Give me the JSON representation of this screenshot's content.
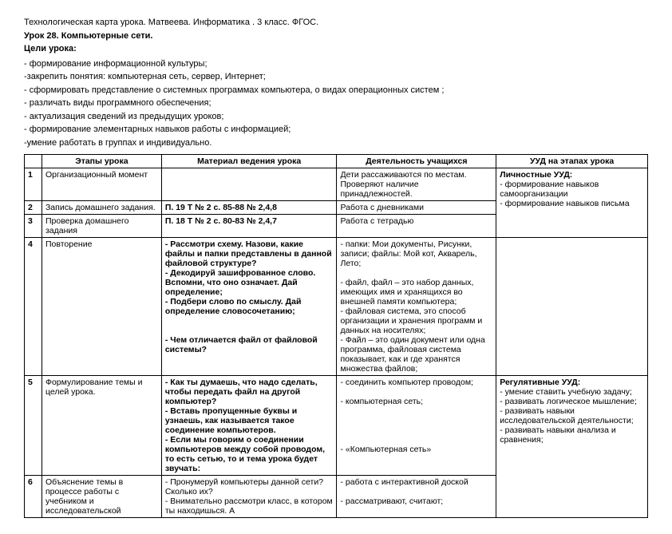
{
  "header": {
    "line1": "Технологическая карта урока. Матвеева. Информатика . 3 класс. ФГОС.",
    "line2": "Урок 28. Компьютерные сети.",
    "goals_title": "Цели урока:",
    "goals": [
      "- формирование информационной культуры;",
      "-закрепить  понятия: компьютерная сеть, сервер, Интернет;",
      "- сформировать представление о системных программах компьютера, о видах операционных систем ;",
      "- различать виды программного обеспечения;",
      "- актуализация сведений из предыдущих уроков;",
      "- формирование элементарных навыков работы с информацией;",
      "-умение работать в группах и индивидуально."
    ]
  },
  "table": {
    "headers": [
      "",
      "Этапы урока",
      "Материал ведения урока",
      "Деятельность учащихся",
      "УУД на этапах урока"
    ],
    "rows": [
      {
        "n": "1",
        "c1": "Организационный момент",
        "c2": "",
        "c3": "Дети рассаживаются по местам. Проверяют наличие принадлежностей.",
        "c4_title": "Личностные УУД:",
        "c4_body": "-  формирование навыков самоорганизации\n- формирование навыков письма",
        "c4_rowspan": 3
      },
      {
        "n": "2",
        "c1": "Запись домашнего задания.",
        "c2": "П.  19   Т № 2 с.  85-88 № 2,4,8",
        "c3": "Работа с дневниками"
      },
      {
        "n": "3",
        "c1": "Проверка домашнего задания",
        "c2": "П.  18 Т № 2 с.  80-83  № 2,4,7",
        "c3": "Работа с тетрадью"
      },
      {
        "n": "4",
        "c1": "Повторение",
        "c2": "-    Рассмотри схему. Назови, какие файлы и папки представлены в данной файловой структуре?\n-    Декодируй зашифрованное слово. Вспомни, что оно означает. Дай определение;\n- Подбери слово по смыслу. Дай определение словосочетанию;\n\n\n-    Чем отличается файл от файловой системы?",
        "c3": "- папки: Мои документы, Рисунки, записи; файлы:  Мой кот, Акварель, Лето;\n\n- файл, файл – это набор данных, имеющих имя и хранящихся во внешней памяти компьютера;\n- файловая система, это способ организации и хранения программ и данных на носителях;\n- Файл – это один документ или одна программа, файловая система показывает, как и где хранятся множества файлов;",
        "c4": ""
      },
      {
        "n": "5",
        "c1": "Формулирование  темы и целей   урока.",
        "c2": "- Как ты думаешь, что надо сделать, чтобы передать файл на другой компьютер?\n-   Вставь пропущенные буквы и узнаешь, как называется  такое соединение компьютеров.\n- Если мы говорим о соединении  компьютеров между собой  проводом, то есть сетью, то и тема урока будет звучать:",
        "c3": "- соединить компьютер проводом;\n\n- компьютерная сеть;\n\n\n\n\n- «Компьютерная сеть»",
        "c4_title": "Регулятивные УУД:",
        "c4_body": "- умение ставить  учебную задачу;\n- развивать логическое мышление;\n- развивать навыки исследовательской деятельности;\n- развивать навыки анализа и сравнения;",
        "c4_rowspan": 2
      },
      {
        "n": "6",
        "c1": "Объяснение темы в процессе работы с учебником и исследовательской",
        "c2": "- Пронумеруй компьютеры данной сети? Сколько их?\n-   Внимательно рассмотри класс, в котором ты находишься. А",
        "c3": "- работа с интерактивной доской\n\n- рассматривают, считают;"
      }
    ]
  }
}
